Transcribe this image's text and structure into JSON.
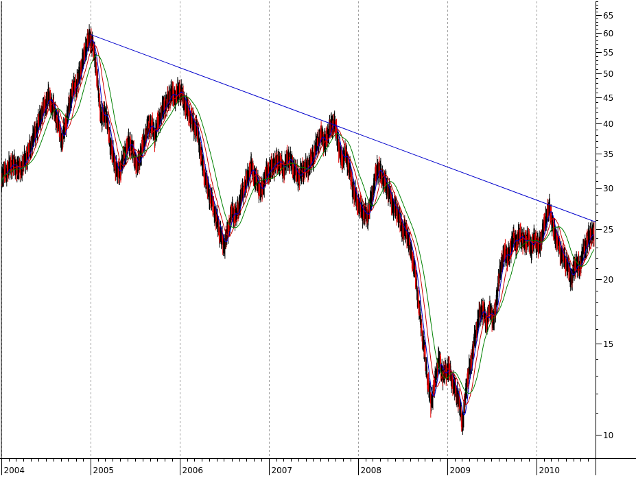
{
  "chart_data": {
    "type": "line",
    "scale": "log",
    "ylim": [
      9,
      69
    ],
    "y_ticks": [
      10,
      15,
      20,
      25,
      30,
      35,
      40,
      45,
      50,
      55,
      60,
      65
    ],
    "y_tick_labels": [
      "10",
      "15",
      "20",
      "25",
      "30",
      "35",
      "40",
      "45",
      "50",
      "55",
      "60",
      "65"
    ],
    "x_range": [
      "2004-01-01",
      "2010-08-31"
    ],
    "year_labels": [
      {
        "label": "2004",
        "date": "2004-01-01"
      },
      {
        "label": "2005",
        "date": "2005-01-01"
      },
      {
        "label": "2006",
        "date": "2006-01-01"
      },
      {
        "label": "2007",
        "date": "2007-01-01"
      },
      {
        "label": "2008",
        "date": "2008-01-01"
      },
      {
        "label": "2009",
        "date": "2009-01-01"
      },
      {
        "label": "2010",
        "date": "2010-01-01"
      }
    ],
    "grid": "vertical-dashed-at-years",
    "colors": {
      "price": "#000000",
      "down": "#e00000",
      "ma_short": "#0000cc",
      "ma_medium": "#cc0000",
      "ma_long": "#008000",
      "trendline": "#0000cc"
    },
    "price": [
      [
        "2004-01-01",
        31.5
      ],
      [
        "2004-02-15",
        33.5
      ],
      [
        "2004-03-15",
        32.5
      ],
      [
        "2004-04-15",
        34.5
      ],
      [
        "2004-05-15",
        38
      ],
      [
        "2004-06-15",
        42
      ],
      [
        "2004-07-10",
        45
      ],
      [
        "2004-08-01",
        43
      ],
      [
        "2004-08-20",
        40
      ],
      [
        "2004-09-05",
        37
      ],
      [
        "2004-09-25",
        41
      ],
      [
        "2004-10-15",
        46
      ],
      [
        "2004-11-10",
        48.5
      ],
      [
        "2004-11-25",
        52
      ],
      [
        "2004-12-15",
        57
      ],
      [
        "2005-01-01",
        59
      ],
      [
        "2005-01-20",
        53
      ],
      [
        "2005-02-05",
        44
      ],
      [
        "2005-02-15",
        41
      ],
      [
        "2005-03-05",
        42
      ],
      [
        "2005-03-20",
        37
      ],
      [
        "2005-04-05",
        34
      ],
      [
        "2005-04-25",
        31.8
      ],
      [
        "2005-05-20",
        35
      ],
      [
        "2005-06-10",
        37
      ],
      [
        "2005-06-25",
        35
      ],
      [
        "2005-07-10",
        33
      ],
      [
        "2005-08-01",
        36
      ],
      [
        "2005-08-20",
        39
      ],
      [
        "2005-09-05",
        40
      ],
      [
        "2005-09-20",
        38
      ],
      [
        "2005-10-10",
        41
      ],
      [
        "2005-10-25",
        43
      ],
      [
        "2005-11-10",
        44
      ],
      [
        "2005-11-25",
        46
      ],
      [
        "2005-12-10",
        45
      ],
      [
        "2006-01-01",
        46.5
      ],
      [
        "2006-01-20",
        44
      ],
      [
        "2006-02-05",
        42
      ],
      [
        "2006-02-25",
        40
      ],
      [
        "2006-03-15",
        38.5
      ],
      [
        "2006-04-05",
        33
      ],
      [
        "2006-04-25",
        30
      ],
      [
        "2006-05-15",
        28
      ],
      [
        "2006-06-10",
        25
      ],
      [
        "2006-06-30",
        23.2
      ],
      [
        "2006-07-15",
        24.5
      ],
      [
        "2006-08-01",
        27
      ],
      [
        "2006-08-20",
        26.5
      ],
      [
        "2006-09-10",
        29
      ],
      [
        "2006-10-01",
        31
      ],
      [
        "2006-10-20",
        33
      ],
      [
        "2006-11-10",
        31
      ],
      [
        "2006-12-01",
        29.5
      ],
      [
        "2006-12-20",
        32
      ],
      [
        "2007-01-15",
        33
      ],
      [
        "2007-02-10",
        34
      ],
      [
        "2007-03-01",
        32.5
      ],
      [
        "2007-03-20",
        34.5
      ],
      [
        "2007-04-10",
        33
      ],
      [
        "2007-05-01",
        31.5
      ],
      [
        "2007-05-20",
        32.5
      ],
      [
        "2007-06-10",
        33
      ],
      [
        "2007-07-01",
        34.5
      ],
      [
        "2007-07-20",
        37
      ],
      [
        "2007-08-05",
        38
      ],
      [
        "2007-08-20",
        36.5
      ],
      [
        "2007-09-05",
        39
      ],
      [
        "2007-09-25",
        40.3
      ],
      [
        "2007-10-10",
        37
      ],
      [
        "2007-10-25",
        34
      ],
      [
        "2007-11-10",
        35
      ],
      [
        "2007-11-25",
        33
      ],
      [
        "2007-12-10",
        30
      ],
      [
        "2008-01-01",
        28
      ],
      [
        "2008-01-20",
        27
      ],
      [
        "2008-02-10",
        26.5
      ],
      [
        "2008-03-01",
        29.5
      ],
      [
        "2008-03-20",
        33
      ],
      [
        "2008-04-10",
        31.5
      ],
      [
        "2008-05-01",
        30
      ],
      [
        "2008-05-20",
        28
      ],
      [
        "2008-06-10",
        27
      ],
      [
        "2008-07-01",
        25
      ],
      [
        "2008-07-20",
        24.5
      ],
      [
        "2008-08-10",
        22
      ],
      [
        "2008-08-25",
        20
      ],
      [
        "2008-09-10",
        17
      ],
      [
        "2008-09-25",
        15
      ],
      [
        "2008-10-10",
        13
      ],
      [
        "2008-10-25",
        11.5
      ],
      [
        "2008-11-10",
        12.5
      ],
      [
        "2008-11-25",
        14
      ],
      [
        "2008-12-15",
        13
      ],
      [
        "2009-01-05",
        13.5
      ],
      [
        "2009-01-25",
        12.5
      ],
      [
        "2009-02-10",
        12
      ],
      [
        "2009-02-25",
        11
      ],
      [
        "2009-03-05",
        10.5
      ],
      [
        "2009-03-20",
        12.5
      ],
      [
        "2009-04-10",
        14
      ],
      [
        "2009-04-25",
        15.5
      ],
      [
        "2009-05-10",
        17
      ],
      [
        "2009-05-25",
        17.5
      ],
      [
        "2009-06-10",
        16.5
      ],
      [
        "2009-06-25",
        17.5
      ],
      [
        "2009-07-10",
        16.5
      ],
      [
        "2009-07-25",
        19
      ],
      [
        "2009-08-10",
        21.5
      ],
      [
        "2009-08-25",
        22.5
      ],
      [
        "2009-09-10",
        22
      ],
      [
        "2009-09-25",
        24
      ],
      [
        "2009-10-10",
        23.5
      ],
      [
        "2009-10-25",
        24.5
      ],
      [
        "2009-11-10",
        23.5
      ],
      [
        "2009-11-25",
        24
      ],
      [
        "2009-12-10",
        23
      ],
      [
        "2009-12-25",
        24
      ],
      [
        "2010-01-10",
        23
      ],
      [
        "2010-01-25",
        24.5
      ],
      [
        "2010-02-10",
        26.5
      ],
      [
        "2010-02-25",
        27.5
      ],
      [
        "2010-03-10",
        25
      ],
      [
        "2010-03-25",
        24
      ],
      [
        "2010-04-10",
        22.5
      ],
      [
        "2010-04-25",
        22
      ],
      [
        "2010-05-10",
        21
      ],
      [
        "2010-05-25",
        20
      ],
      [
        "2010-06-10",
        21.5
      ],
      [
        "2010-06-25",
        21
      ],
      [
        "2010-07-10",
        22.5
      ],
      [
        "2010-07-25",
        23.5
      ],
      [
        "2010-08-10",
        24.5
      ],
      [
        "2010-08-25",
        24.3
      ]
    ],
    "trendline": [
      [
        "2005-01-01",
        59.5
      ],
      [
        "2010-08-31",
        25.8
      ]
    ]
  }
}
